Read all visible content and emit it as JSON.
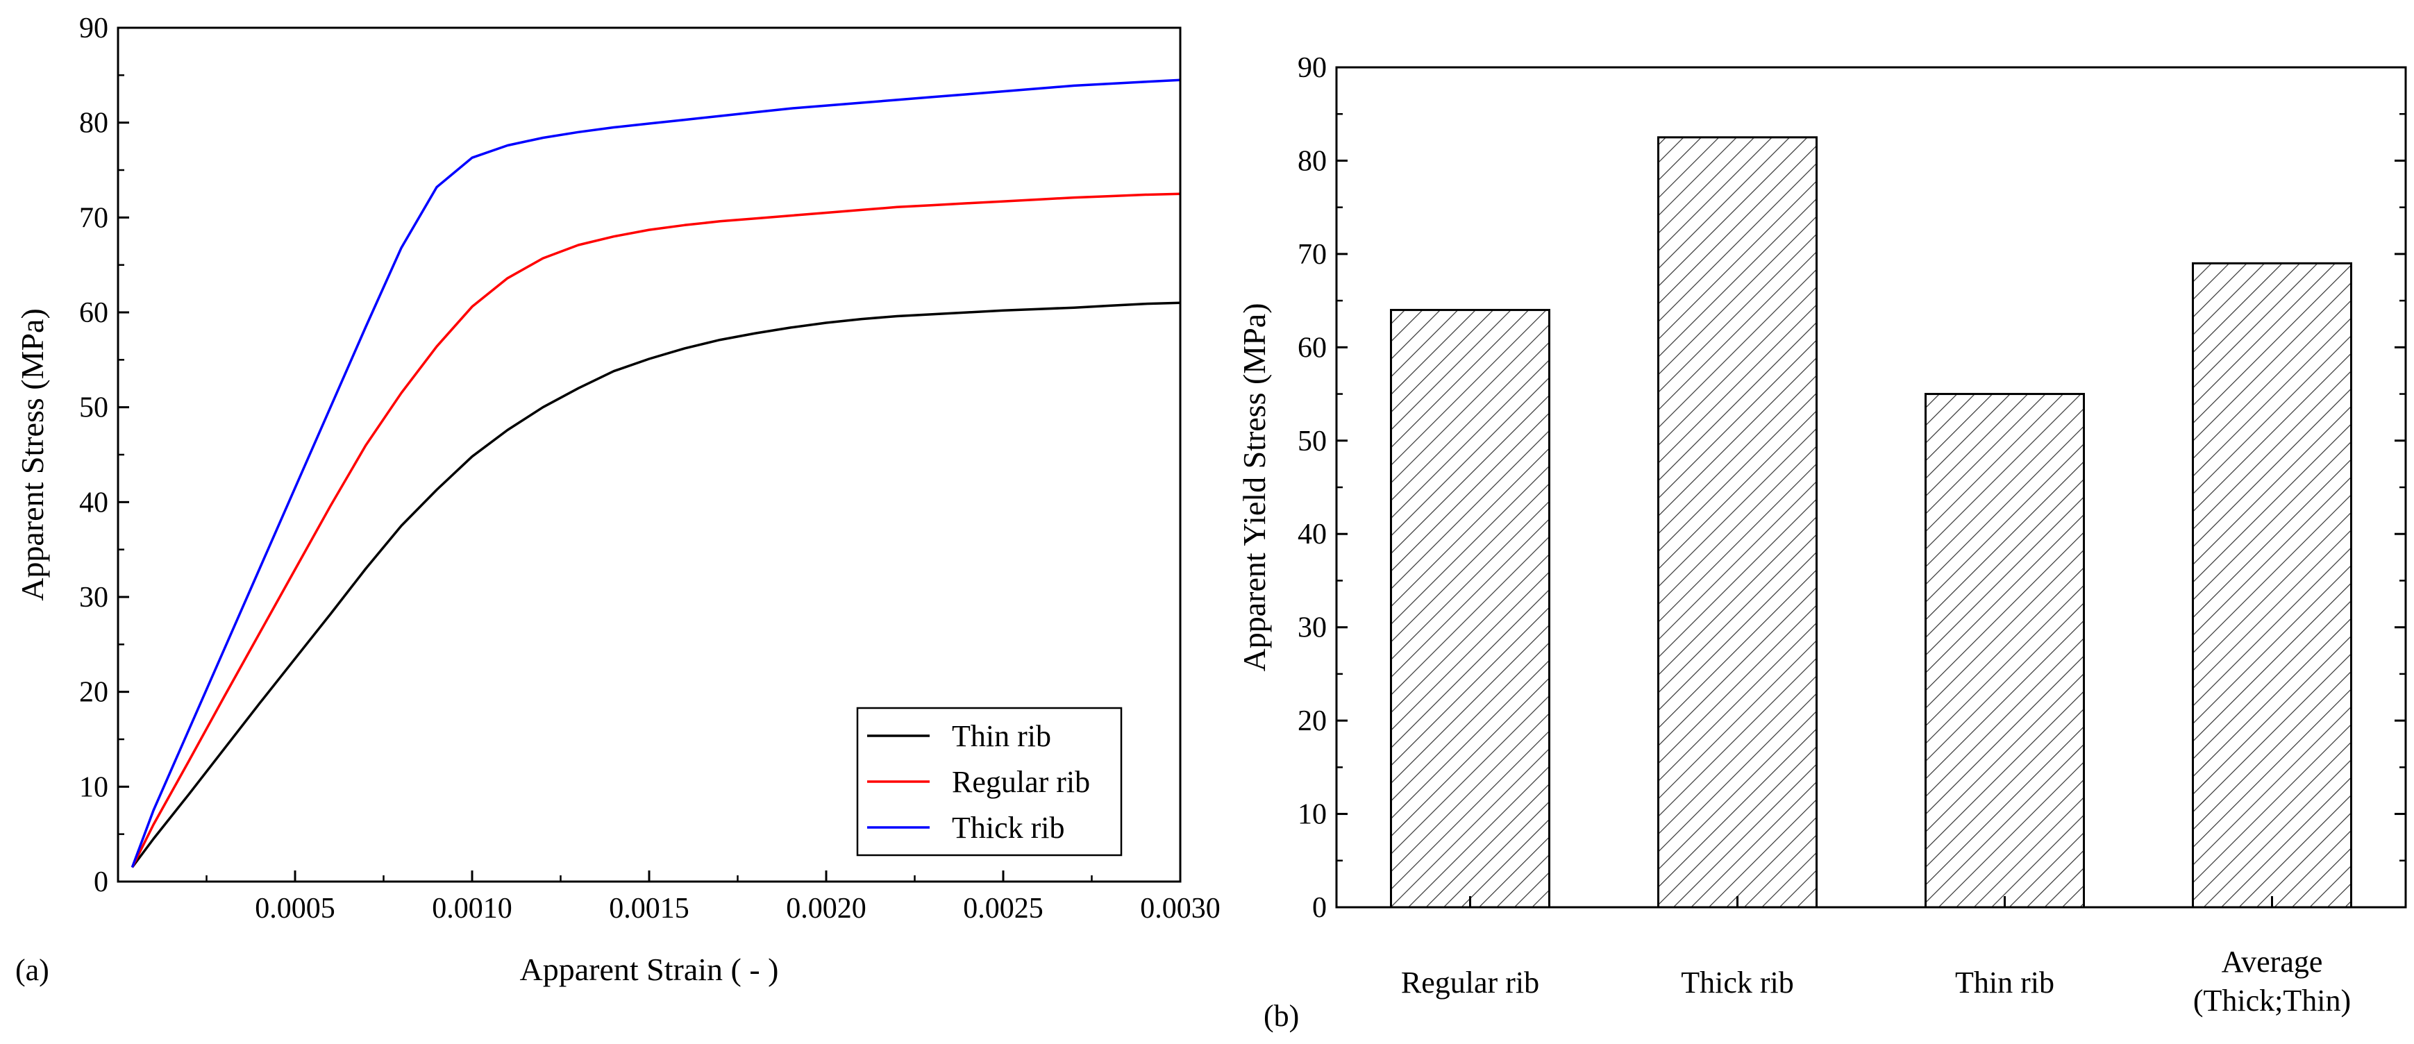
{
  "chart_data": [
    {
      "type": "line",
      "panel_label": "(a)",
      "xlabel": "Apparent Strain ( - )",
      "ylabel": "Apparent Stress (MPa)",
      "xlim": [
        0.0,
        0.003
      ],
      "ylim": [
        0,
        90
      ],
      "x_ticks": [
        0.0005,
        0.001,
        0.0015,
        0.002,
        0.0025,
        0.003
      ],
      "x_tick_labels": [
        "0.0005",
        "0.0010",
        "0.0015",
        "0.0020",
        "0.0025",
        "0.0030"
      ],
      "y_ticks": [
        0,
        10,
        20,
        30,
        40,
        50,
        60,
        70,
        80,
        90
      ],
      "y_tick_labels": [
        "0",
        "10",
        "20",
        "30",
        "40",
        "50",
        "60",
        "70",
        "80",
        "90"
      ],
      "legend_position": "bottom-right",
      "series": [
        {
          "name": "Thin rib",
          "color": "#000000",
          "points": [
            [
              4e-05,
              1.5
            ],
            [
              0.0001,
              4.5
            ],
            [
              0.0002,
              9.2
            ],
            [
              0.0003,
              14.0
            ],
            [
              0.0004,
              18.8
            ],
            [
              0.0005,
              23.5
            ],
            [
              0.0006,
              28.2
            ],
            [
              0.0007,
              33.0
            ],
            [
              0.0008,
              37.5
            ],
            [
              0.0009,
              41.3
            ],
            [
              0.001,
              44.8
            ],
            [
              0.0011,
              47.6
            ],
            [
              0.0012,
              50.0
            ],
            [
              0.0013,
              52.0
            ],
            [
              0.0014,
              53.8
            ],
            [
              0.0015,
              55.1
            ],
            [
              0.0016,
              56.2
            ],
            [
              0.0017,
              57.1
            ],
            [
              0.0018,
              57.8
            ],
            [
              0.0019,
              58.4
            ],
            [
              0.002,
              58.9
            ],
            [
              0.0021,
              59.3
            ],
            [
              0.0022,
              59.6
            ],
            [
              0.0023,
              59.8
            ],
            [
              0.0024,
              60.0
            ],
            [
              0.0025,
              60.2
            ],
            [
              0.0026,
              60.35
            ],
            [
              0.0027,
              60.5
            ],
            [
              0.0028,
              60.7
            ],
            [
              0.0029,
              60.9
            ],
            [
              0.003,
              61.0
            ]
          ]
        },
        {
          "name": "Regular rib",
          "color": "#ff0000",
          "points": [
            [
              4e-05,
              1.5
            ],
            [
              0.0001,
              6.0
            ],
            [
              0.0002,
              12.7
            ],
            [
              0.0003,
              19.5
            ],
            [
              0.0004,
              26.2
            ],
            [
              0.0005,
              32.9
            ],
            [
              0.0006,
              39.6
            ],
            [
              0.0007,
              46.0
            ],
            [
              0.0008,
              51.5
            ],
            [
              0.0009,
              56.4
            ],
            [
              0.001,
              60.6
            ],
            [
              0.0011,
              63.6
            ],
            [
              0.0012,
              65.7
            ],
            [
              0.0013,
              67.1
            ],
            [
              0.0014,
              68.0
            ],
            [
              0.0015,
              68.7
            ],
            [
              0.0016,
              69.2
            ],
            [
              0.0017,
              69.6
            ],
            [
              0.0018,
              69.9
            ],
            [
              0.0019,
              70.2
            ],
            [
              0.002,
              70.5
            ],
            [
              0.0021,
              70.8
            ],
            [
              0.0022,
              71.1
            ],
            [
              0.0023,
              71.3
            ],
            [
              0.0024,
              71.5
            ],
            [
              0.0025,
              71.7
            ],
            [
              0.0026,
              71.9
            ],
            [
              0.0027,
              72.1
            ],
            [
              0.0028,
              72.25
            ],
            [
              0.0029,
              72.4
            ],
            [
              0.003,
              72.5
            ]
          ]
        },
        {
          "name": "Thick rib",
          "color": "#0000ff",
          "points": [
            [
              4e-05,
              1.5
            ],
            [
              0.0001,
              7.5
            ],
            [
              0.0002,
              16.0
            ],
            [
              0.0003,
              24.5
            ],
            [
              0.0004,
              33.0
            ],
            [
              0.0005,
              41.5
            ],
            [
              0.0006,
              50.0
            ],
            [
              0.0007,
              58.5
            ],
            [
              0.0008,
              66.8
            ],
            [
              0.0009,
              73.2
            ],
            [
              0.001,
              76.3
            ],
            [
              0.0011,
              77.6
            ],
            [
              0.0012,
              78.4
            ],
            [
              0.0013,
              79.0
            ],
            [
              0.0014,
              79.5
            ],
            [
              0.0015,
              79.9
            ],
            [
              0.0016,
              80.3
            ],
            [
              0.0017,
              80.7
            ],
            [
              0.0018,
              81.1
            ],
            [
              0.0019,
              81.5
            ],
            [
              0.002,
              81.8
            ],
            [
              0.0021,
              82.1
            ],
            [
              0.0022,
              82.4
            ],
            [
              0.0023,
              82.7
            ],
            [
              0.0024,
              83.0
            ],
            [
              0.0025,
              83.3
            ],
            [
              0.0026,
              83.6
            ],
            [
              0.0027,
              83.9
            ],
            [
              0.0028,
              84.1
            ],
            [
              0.0029,
              84.3
            ],
            [
              0.003,
              84.5
            ]
          ]
        }
      ]
    },
    {
      "type": "bar",
      "panel_label": "(b)",
      "ylabel": "Apparent Yield Stress (MPa)",
      "xlabel": "",
      "ylim": [
        0,
        90
      ],
      "y_ticks": [
        0,
        10,
        20,
        30,
        40,
        50,
        60,
        70,
        80,
        90
      ],
      "y_tick_labels": [
        "0",
        "10",
        "20",
        "30",
        "40",
        "50",
        "60",
        "70",
        "80",
        "90"
      ],
      "fill": "diagonal-hatch",
      "categories": [
        [
          "Regular rib"
        ],
        [
          "Thick rib"
        ],
        [
          "Thin rib"
        ],
        [
          "Average",
          "(Thick;Thin)"
        ]
      ],
      "values": [
        64,
        82.5,
        55,
        69
      ]
    }
  ]
}
